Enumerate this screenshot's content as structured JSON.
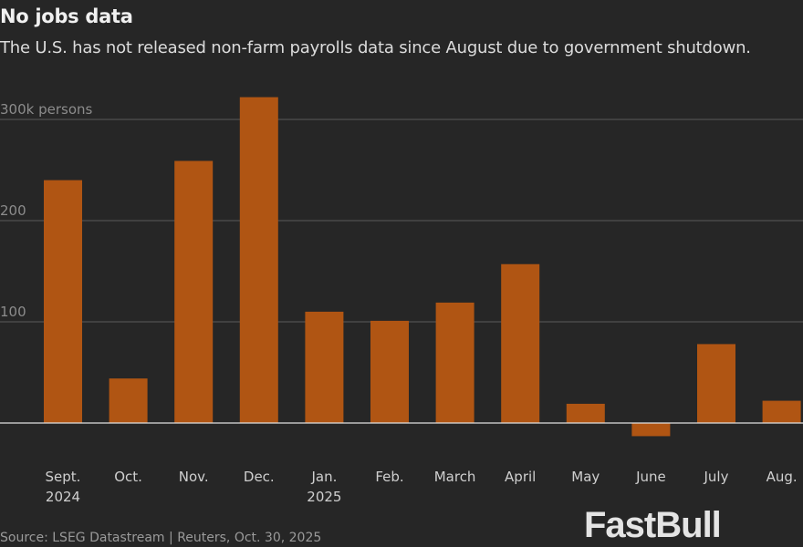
{
  "chart_data": {
    "type": "bar",
    "title": "No jobs data",
    "subtitle": "The U.S. has not released non-farm payrolls data since August due to government shutdown.",
    "ylabel": "",
    "unit_label": "300k persons",
    "yticks": [
      100,
      200,
      300
    ],
    "ytick_labels": [
      "100",
      "200",
      "300k persons"
    ],
    "ylim": [
      -20,
      330
    ],
    "grid": true,
    "categories": [
      "Sept.",
      "Oct.",
      "Nov.",
      "Dec.",
      "Jan.",
      "Feb.",
      "March",
      "April",
      "May",
      "June",
      "July",
      "Aug."
    ],
    "category_sublabels": [
      "2024",
      "",
      "",
      "",
      "2025",
      "",
      "",
      "",
      "",
      "",
      "",
      ""
    ],
    "values": [
      240,
      44,
      259,
      322,
      110,
      101,
      119,
      157,
      19,
      -13,
      78,
      22
    ],
    "bar_color": "#b05513",
    "background_color": "#262626",
    "source": "Source: LSEG Datastream | Reuters, Oct. 30, 2025"
  },
  "watermark": "FastBull"
}
